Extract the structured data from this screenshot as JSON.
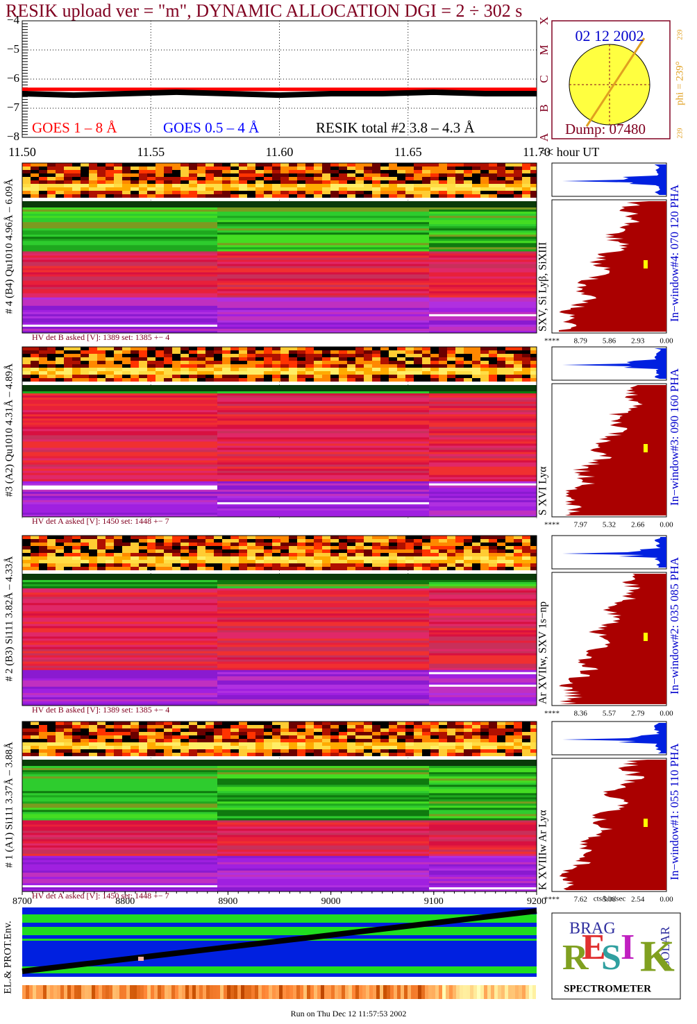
{
  "title": "RESIK upload ver = \"m\", DYNAMIC ALLOCATION  DGI =   2 ÷ 302 s",
  "sun": {
    "date": "02 12 2002",
    "phi": "phi = 239°",
    "phi_sup": "239",
    "corner": "239",
    "dump": "Dump: 07480"
  },
  "goes_classes": [
    "X",
    "M",
    "C",
    "B",
    "A"
  ],
  "chart_data": [
    {
      "type": "line",
      "x": [
        11.5,
        11.52,
        11.54,
        11.56,
        11.58,
        11.6,
        11.62,
        11.64,
        11.66,
        11.68,
        11.7
      ],
      "series": [
        {
          "name": "GOES 1 – 8 Å",
          "color": "#ff0000",
          "values": [
            -6.35,
            -6.35,
            -6.35,
            -6.35,
            -6.35,
            -6.35,
            -6.35,
            -6.35,
            -6.35,
            -6.35,
            -6.35
          ]
        },
        {
          "name": "GOES 0.5 – 4 Å",
          "color": "#0000ff",
          "values": [
            null,
            null,
            null,
            null,
            null,
            null,
            null,
            null,
            null,
            null,
            null
          ]
        },
        {
          "name": "RESIK total #2  3.8 – 4.3 Å",
          "color": "#000000",
          "values": [
            -6.5,
            -6.55,
            -6.5,
            -6.45,
            -6.5,
            -6.55,
            -6.5,
            -6.5,
            -6.45,
            -6.5,
            -6.5
          ]
        }
      ],
      "xlim": [
        11.5,
        11.7
      ],
      "xticks": [
        {
          "value": 11.5,
          "label": "11.50"
        },
        {
          "value": 11.55,
          "label": "11.55"
        },
        {
          "value": 11.6,
          "label": "11.60"
        },
        {
          "value": 11.65,
          "label": "11.65"
        },
        {
          "value": 11.7,
          "label": "11.70"
        }
      ],
      "x_label": "<< hour UT",
      "ylim": [
        -8,
        -4
      ],
      "yticks": [
        {
          "value": -4,
          "label": "−4"
        },
        {
          "value": -5,
          "label": "−5"
        },
        {
          "value": -6,
          "label": "−6"
        },
        {
          "value": -7,
          "label": "−7"
        },
        {
          "value": -8,
          "label": "−8"
        }
      ],
      "grid": true
    },
    {
      "type": "band",
      "xlim": [
        8700,
        9200
      ],
      "xticks": [
        8700,
        8800,
        8900,
        9000,
        9100,
        9200
      ]
    }
  ],
  "panels": [
    {
      "label": "# 4 (B4) Qu1010 4.96Å – 6.09Å",
      "lines": "SXV, Si Lyβ, SiXIII",
      "window": "In−window#4:  070 120 PHA",
      "hv": "HV det B asked [V]:  1389 set:  1385 +−    4",
      "ticks": [
        "****",
        "8.79",
        "5.86",
        "2.93",
        "0.00"
      ]
    },
    {
      "label": "#3 (A2) Qu1010  4.31Å – 4.89Å",
      "lines": "S XVI Lyα",
      "window": "In−window#3:  090 160 PHA",
      "hv": "HV det A asked [V]:  1450 set:  1448 +−    7",
      "ticks": [
        "****",
        "7.97",
        "5.32",
        "2.66",
        "0.00"
      ]
    },
    {
      "label": "# 2 (B3) Si111  3.82Å – 4.33Å",
      "lines": "Ar XVIIw,  SXV 1s−np",
      "window": "In−window#2:  035 085 PHA",
      "hv": "HV det B asked [V]:  1389 set:  1385 +−    4",
      "ticks": [
        "****",
        "8.36",
        "5.57",
        "2.79",
        "0.00"
      ]
    },
    {
      "label": "# 1 (A1) Si111  3.37Å – 3.88Å",
      "lines": "K XVIIIw  Ar Lyα",
      "window": "In−window#1:  055 110 PHA",
      "hv": "HV det A asked [V]:  1450 set:  1448 +−    7",
      "ticks": [
        "****",
        "7.62",
        "5.08",
        "2.54",
        "0.00"
      ]
    }
  ],
  "hist_unit": "cts/bin/sec",
  "env_label": "EL.& PROT.Env.",
  "logo": {
    "letters": [
      "R",
      "E",
      "S",
      "I",
      "K"
    ],
    "top": "BRAG",
    "side": "SOLAR",
    "caption": "SPECTROMETER"
  },
  "footer": "Run on Thu Dec 12 11:57:53 2002"
}
